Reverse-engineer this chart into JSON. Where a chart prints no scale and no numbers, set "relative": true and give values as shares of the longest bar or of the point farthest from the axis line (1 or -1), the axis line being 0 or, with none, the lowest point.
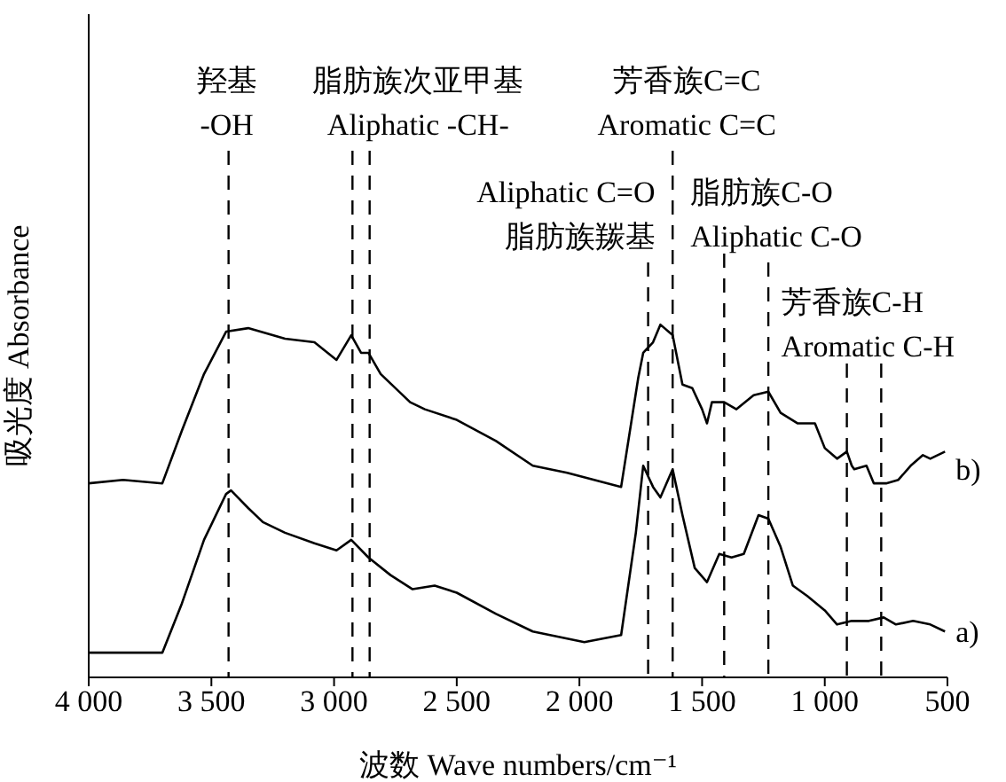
{
  "chart_data": {
    "type": "line",
    "xlabel": "波数 Wave numbers/cm⁻¹",
    "ylabel": "吸光度 Absorbance",
    "relative": true,
    "xlim": [
      4000,
      500
    ],
    "xticks": [
      {
        "value": 4000,
        "label": "4 000"
      },
      {
        "value": 3500,
        "label": "3 500"
      },
      {
        "value": 3000,
        "label": "3 000"
      },
      {
        "value": 2500,
        "label": "2 500"
      },
      {
        "value": 2000,
        "label": "2 000"
      },
      {
        "value": 1500,
        "label": "1 500"
      },
      {
        "value": 1000,
        "label": "1 000"
      },
      500
    ],
    "series": [
      {
        "name": "b)",
        "color": "#000000",
        "x": [
          4000,
          3860,
          3700,
          3620,
          3530,
          3440,
          3350,
          3200,
          3080,
          2990,
          2930,
          2890,
          2860,
          2810,
          2690,
          2630,
          2500,
          2340,
          2190,
          2050,
          1830,
          1760,
          1740,
          1700,
          1670,
          1620,
          1580,
          1540,
          1500,
          1480,
          1460,
          1430,
          1410,
          1360,
          1290,
          1230,
          1180,
          1110,
          1040,
          1000,
          950,
          910,
          890,
          880,
          830,
          800,
          760,
          750,
          700,
          650,
          600,
          570,
          510
        ],
        "values": [
          0.55,
          0.56,
          0.55,
          0.7,
          0.86,
          0.98,
          0.99,
          0.96,
          0.95,
          0.9,
          0.97,
          0.92,
          0.92,
          0.86,
          0.78,
          0.76,
          0.73,
          0.67,
          0.6,
          0.58,
          0.54,
          0.85,
          0.92,
          0.95,
          1.0,
          0.97,
          0.83,
          0.82,
          0.76,
          0.72,
          0.78,
          0.78,
          0.78,
          0.76,
          0.8,
          0.81,
          0.75,
          0.72,
          0.72,
          0.65,
          0.62,
          0.64,
          0.6,
          0.59,
          0.6,
          0.55,
          0.55,
          0.55,
          0.56,
          0.6,
          0.63,
          0.62,
          0.64
        ]
      },
      {
        "name": "a)",
        "color": "#000000",
        "x": [
          4000,
          3860,
          3700,
          3620,
          3530,
          3440,
          3420,
          3350,
          3290,
          3200,
          3080,
          2990,
          2930,
          2860,
          2770,
          2680,
          2590,
          2500,
          2340,
          2190,
          1980,
          1830,
          1770,
          1740,
          1700,
          1670,
          1620,
          1580,
          1530,
          1480,
          1430,
          1380,
          1330,
          1270,
          1230,
          1180,
          1130,
          1070,
          1000,
          950,
          890,
          820,
          760,
          710,
          640,
          570,
          510
        ],
        "values": [
          0.07,
          0.07,
          0.07,
          0.21,
          0.39,
          0.52,
          0.53,
          0.48,
          0.44,
          0.41,
          0.38,
          0.36,
          0.39,
          0.34,
          0.29,
          0.25,
          0.26,
          0.24,
          0.18,
          0.13,
          0.1,
          0.12,
          0.41,
          0.6,
          0.54,
          0.51,
          0.59,
          0.46,
          0.31,
          0.27,
          0.35,
          0.34,
          0.35,
          0.46,
          0.45,
          0.37,
          0.26,
          0.23,
          0.19,
          0.15,
          0.16,
          0.16,
          0.17,
          0.15,
          0.16,
          0.15,
          0.13
        ]
      }
    ],
    "ref_lines": [
      {
        "axis": "x",
        "value": 3430,
        "label": "羟基\n-OH",
        "line_style": "dashed"
      },
      {
        "axis": "x",
        "value": 2925,
        "label": "脂肪族次亚甲基\nAliphatic -CH-",
        "line_style": "dashed"
      },
      {
        "axis": "x",
        "value": 2855,
        "label": null,
        "line_style": "dashed"
      },
      {
        "axis": "x",
        "value": 1720,
        "label": "Aliphatic C=O\n脂肪族羰基",
        "line_style": "dashed"
      },
      {
        "axis": "x",
        "value": 1620,
        "label": "芳香族C=C\nAromatic C=C",
        "line_style": "dashed"
      },
      {
        "axis": "x",
        "value": 1410,
        "label": "脂肪族C-O\nAliphatic C-O",
        "line_style": "dashed"
      },
      {
        "axis": "x",
        "value": 1230,
        "label": null,
        "line_style": "dashed"
      },
      {
        "axis": "x",
        "value": 910,
        "label": "芳香族C-H\nAromatic C-H",
        "line_style": "dashed"
      },
      {
        "axis": "x",
        "value": 770,
        "label": null,
        "line_style": "dashed"
      }
    ],
    "legend": false,
    "marker": "none",
    "line_style": "solid"
  }
}
